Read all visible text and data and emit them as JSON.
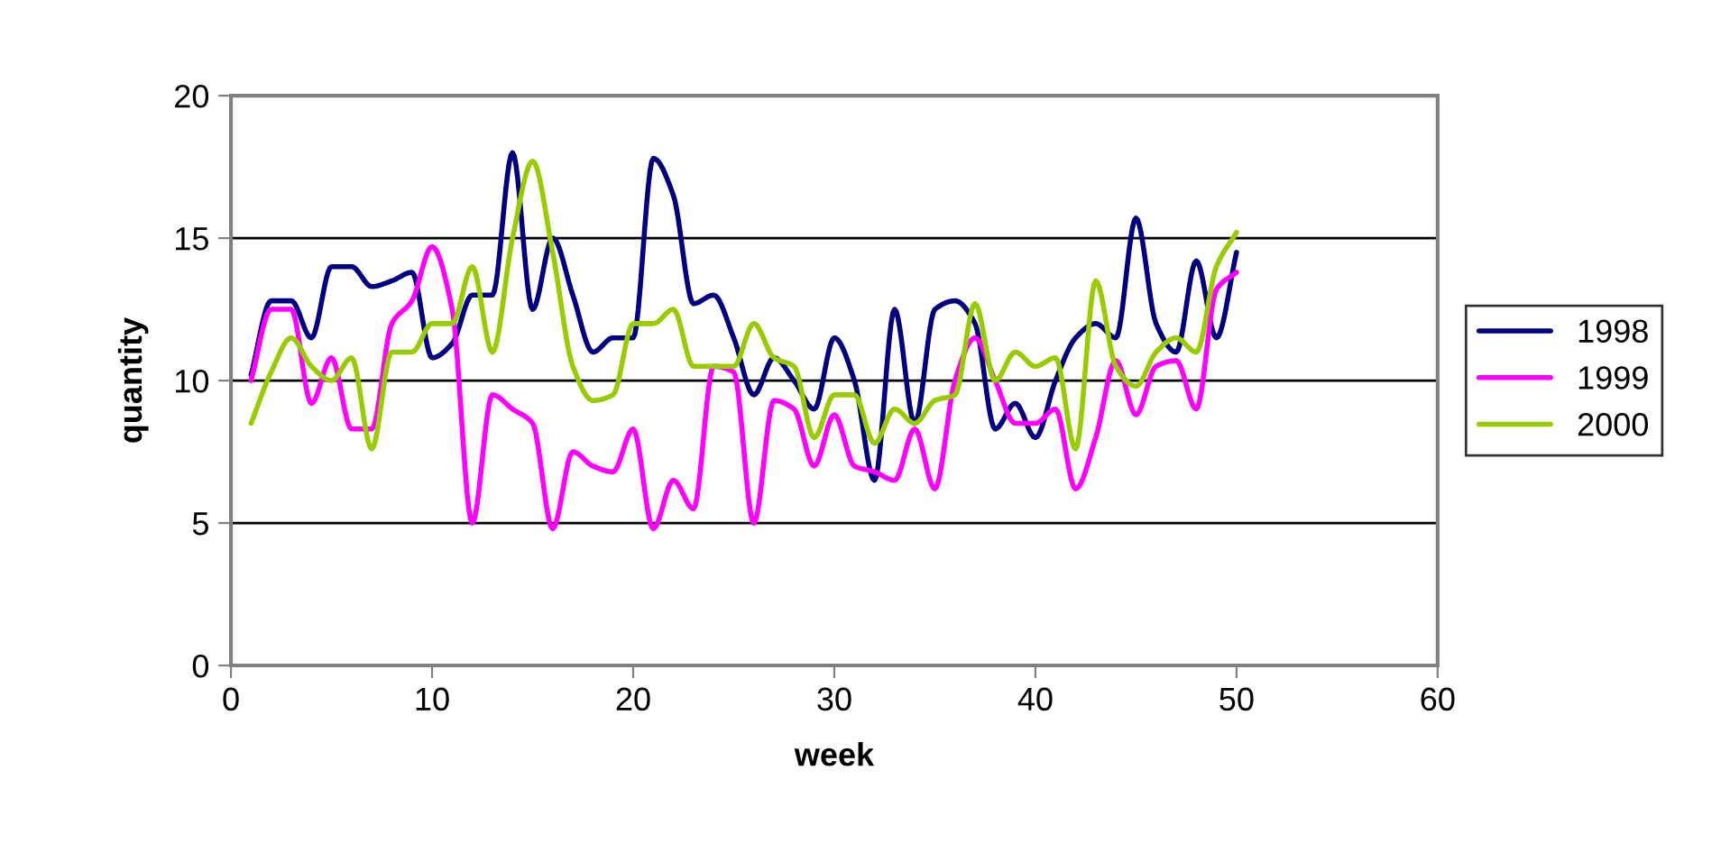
{
  "chart_data": {
    "type": "line",
    "xlabel": "week",
    "ylabel": "quantity",
    "x": [
      1,
      2,
      3,
      4,
      5,
      6,
      7,
      8,
      9,
      10,
      11,
      12,
      13,
      14,
      15,
      16,
      17,
      18,
      19,
      20,
      21,
      22,
      23,
      24,
      25,
      26,
      27,
      28,
      29,
      30,
      31,
      32,
      33,
      34,
      35,
      36,
      37,
      38,
      39,
      40,
      41,
      42,
      43,
      44,
      45,
      46,
      47,
      48,
      49,
      50
    ],
    "series": [
      {
        "name": "1998",
        "color": "#000080",
        "values": [
          10.2,
          12.8,
          12.8,
          11.5,
          14.0,
          14.0,
          13.3,
          13.5,
          13.8,
          10.8,
          11.3,
          13.0,
          13.0,
          18.0,
          12.5,
          15.0,
          13.0,
          11.0,
          11.5,
          11.5,
          17.8,
          16.5,
          12.7,
          13.0,
          11.5,
          9.5,
          10.8,
          10.0,
          9.0,
          11.5,
          10.0,
          6.5,
          12.5,
          8.5,
          12.5,
          12.8,
          12.0,
          8.3,
          9.2,
          8.0,
          10.0,
          11.5,
          12.0,
          11.5,
          15.7,
          12.0,
          11.0,
          14.2,
          11.5,
          14.5
        ]
      },
      {
        "name": "1999",
        "color": "#ff00ff",
        "values": [
          10.0,
          12.5,
          12.5,
          9.2,
          10.8,
          8.3,
          8.3,
          12.0,
          12.8,
          14.7,
          12.5,
          5.0,
          9.5,
          9.0,
          8.5,
          4.8,
          7.5,
          7.0,
          6.8,
          8.3,
          4.8,
          6.5,
          5.5,
          10.5,
          10.3,
          5.0,
          9.3,
          9.0,
          7.0,
          8.8,
          7.0,
          6.8,
          6.5,
          8.3,
          6.2,
          10.0,
          11.5,
          10.0,
          8.5,
          8.5,
          9.0,
          6.2,
          8.0,
          10.7,
          8.8,
          10.5,
          10.7,
          9.0,
          13.2,
          13.8
        ]
      },
      {
        "name": "2000",
        "color": "#99cc00",
        "values": [
          8.5,
          10.3,
          11.5,
          10.5,
          10.0,
          10.8,
          7.6,
          11.0,
          11.0,
          12.0,
          12.0,
          14.0,
          11.0,
          15.0,
          17.7,
          14.5,
          10.5,
          9.3,
          9.5,
          12.0,
          12.0,
          12.5,
          10.5,
          10.5,
          10.5,
          12.0,
          10.8,
          10.5,
          8.0,
          9.5,
          9.5,
          7.8,
          9.0,
          8.5,
          9.3,
          9.5,
          12.7,
          10.0,
          11.0,
          10.5,
          10.8,
          7.6,
          13.5,
          10.5,
          9.8,
          11.0,
          11.5,
          11.0,
          14.0,
          15.2
        ]
      }
    ],
    "xlim": [
      0,
      60
    ],
    "xticks": [
      0,
      10,
      20,
      30,
      40,
      50,
      60
    ],
    "ylim": [
      0,
      20
    ],
    "yticks": [
      0,
      5,
      10,
      15,
      20
    ],
    "grid": "y",
    "legend": "right",
    "line_style": "solid"
  }
}
